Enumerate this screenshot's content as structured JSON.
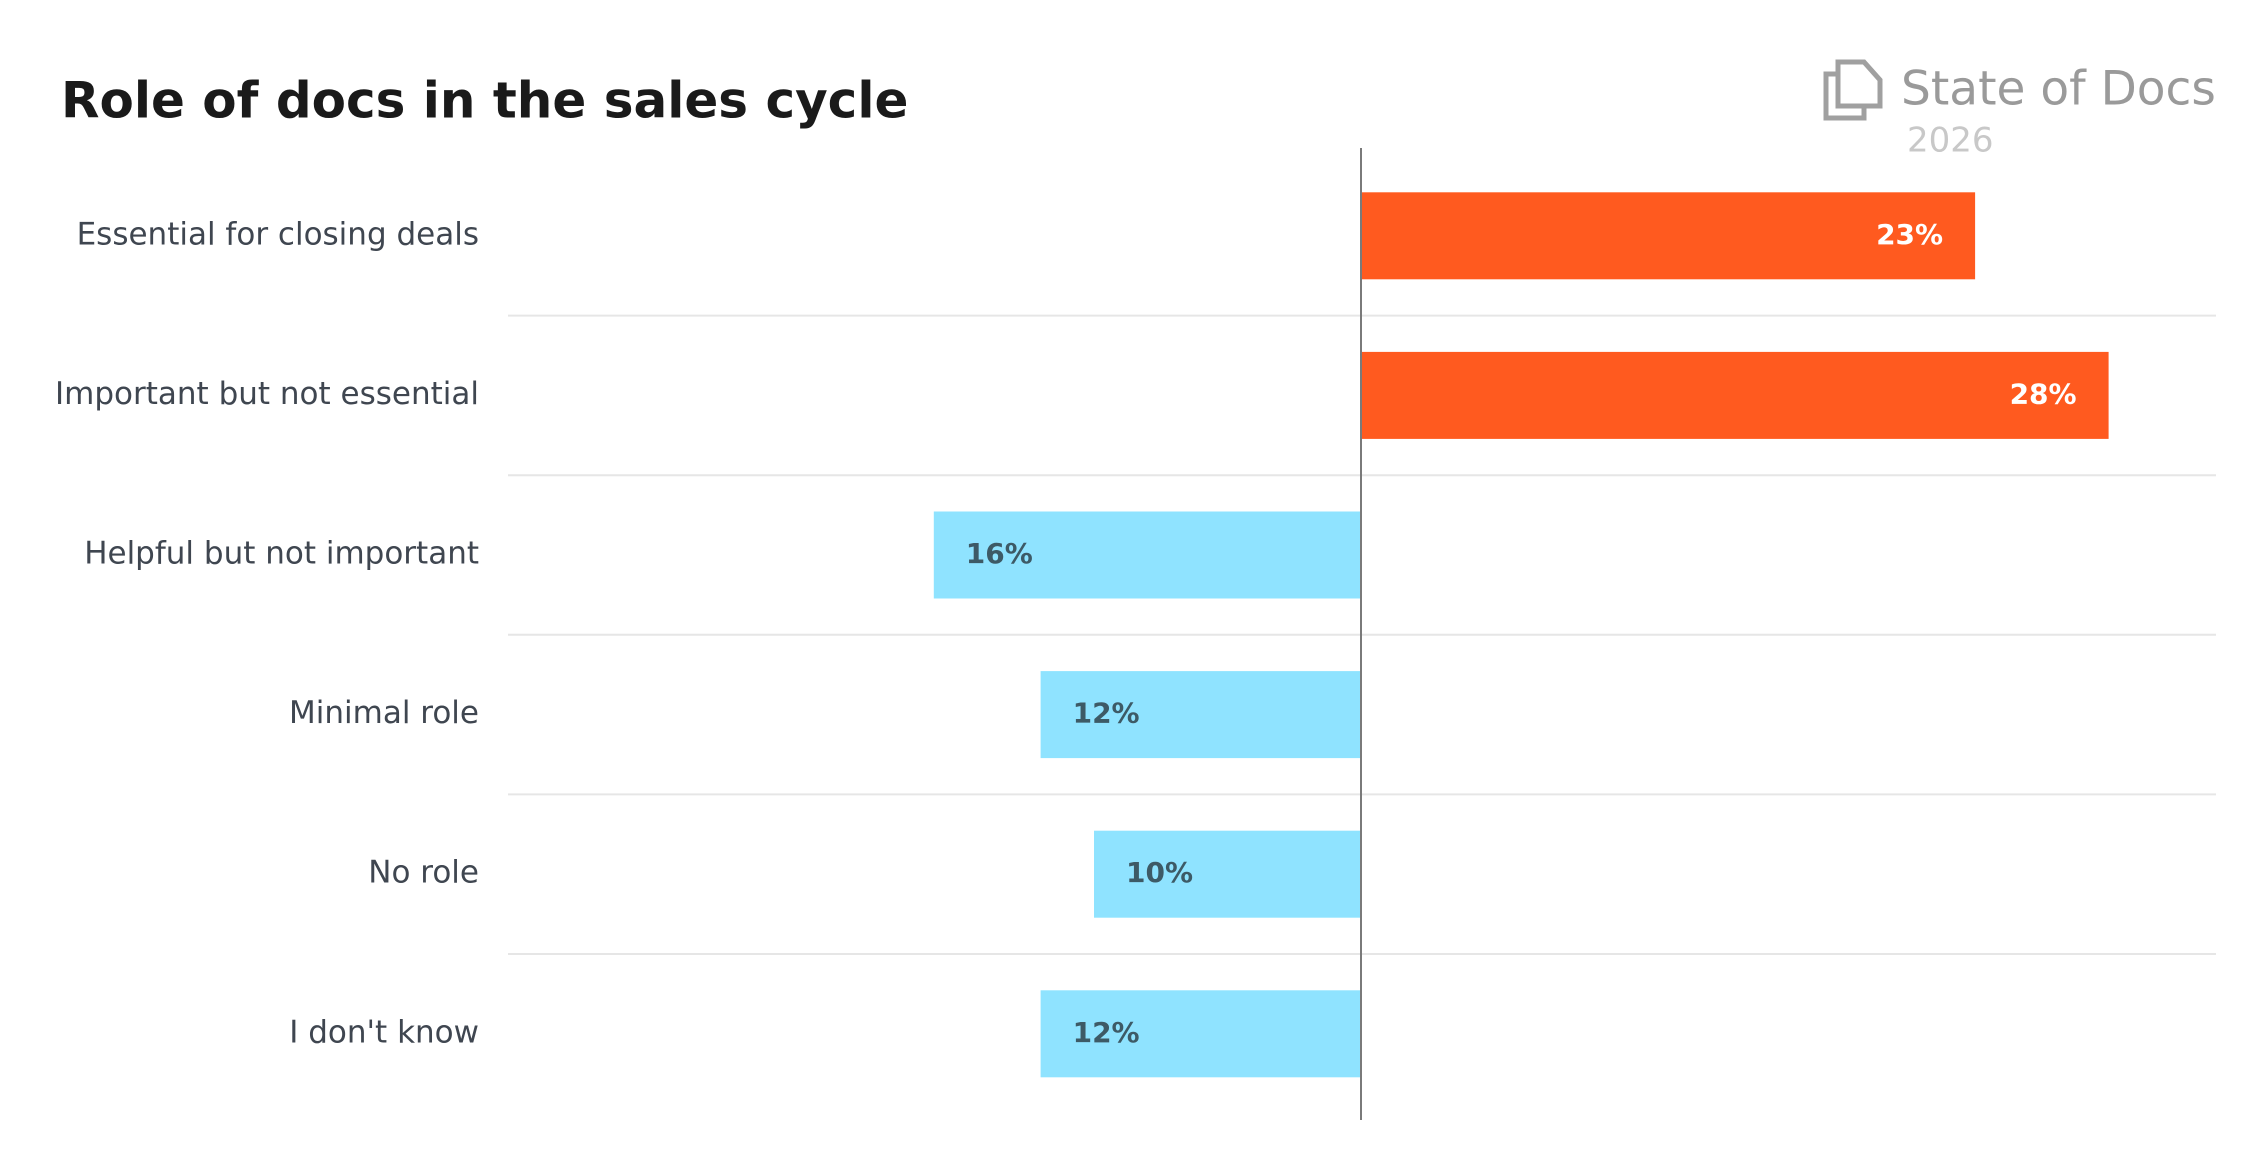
{
  "chart_data": {
    "type": "diverging-bar",
    "title": "Role of docs in the sales cycle",
    "brand": {
      "name": "State of Docs",
      "year": "2026"
    },
    "categories": [
      "Essential for closing deals",
      "Important but not essential",
      "Helpful but not important",
      "Minimal role",
      "No role",
      "I don't know"
    ],
    "values": [
      23,
      28,
      16,
      12,
      10,
      12
    ],
    "value_labels": [
      "23%",
      "28%",
      "16%",
      "12%",
      "10%",
      "12%"
    ],
    "bar_sides": [
      "right",
      "right",
      "left",
      "left",
      "left",
      "left"
    ],
    "colors": [
      "#ff5a1f",
      "#ff5a1f",
      "#8fe3ff",
      "#8fe3ff",
      "#8fe3ff",
      "#8fe3ff"
    ],
    "value_label_colors": [
      "#ffffff",
      "#ffffff",
      "#3d5a66",
      "#3d5a66",
      "#3d5a66",
      "#3d5a66"
    ]
  }
}
